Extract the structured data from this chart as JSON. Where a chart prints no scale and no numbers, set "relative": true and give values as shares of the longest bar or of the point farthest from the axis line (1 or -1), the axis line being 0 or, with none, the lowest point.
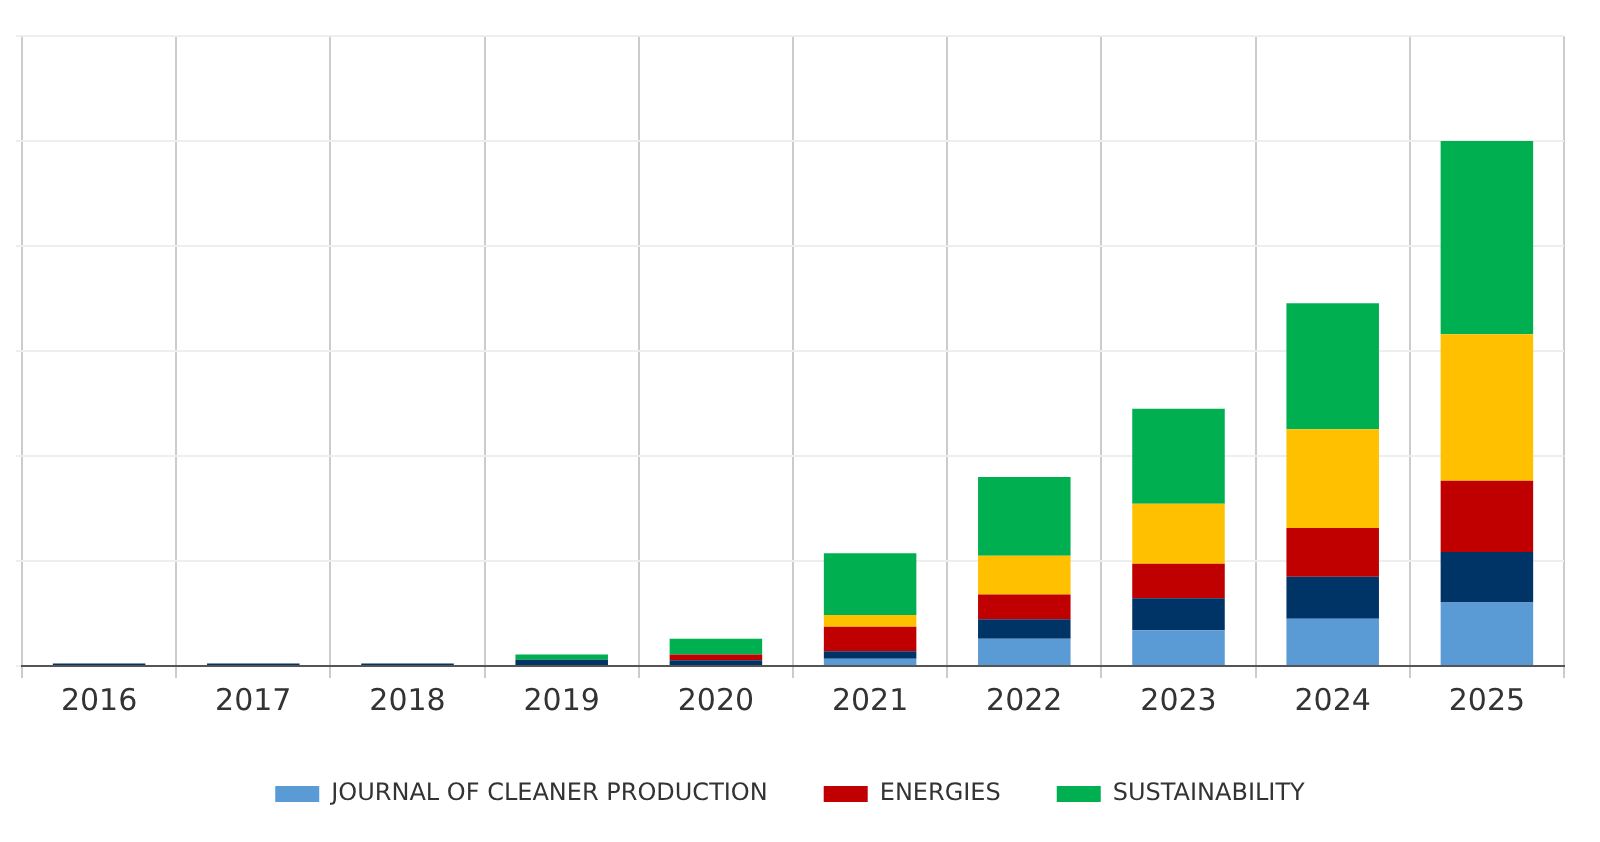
{
  "chart_data": {
    "type": "bar",
    "stacked": true,
    "relative": true,
    "grid": true,
    "legend": "bottom",
    "categories": [
      "2016",
      "2017",
      "2018",
      "2019",
      "2020",
      "2021",
      "2022",
      "2023",
      "2024",
      "2025"
    ],
    "series": [
      {
        "name": "JOURNAL OF CLEANER PRODUCTION",
        "color": "#5b9bd5",
        "values": [
          0,
          0,
          0,
          0,
          0,
          0.014,
          0.052,
          0.068,
          0.09,
          0.121
        ]
      },
      {
        "color": "#003366",
        "values": [
          0.005,
          0.005,
          0.005,
          0.012,
          0.011,
          0.014,
          0.037,
          0.061,
          0.08,
          0.096
        ]
      },
      {
        "name": "ENERGIES",
        "color": "#c00000",
        "values": [
          0,
          0,
          0,
          0,
          0.011,
          0.047,
          0.047,
          0.066,
          0.093,
          0.136
        ]
      },
      {
        "color": "#ffc000",
        "values": [
          0,
          0,
          0,
          0,
          0,
          0.022,
          0.074,
          0.114,
          0.188,
          0.279
        ]
      },
      {
        "name": "SUSTAINABILITY",
        "color": "#00b050",
        "values": [
          0,
          0,
          0,
          0.01,
          0.03,
          0.118,
          0.15,
          0.181,
          0.24,
          0.368
        ]
      }
    ]
  }
}
